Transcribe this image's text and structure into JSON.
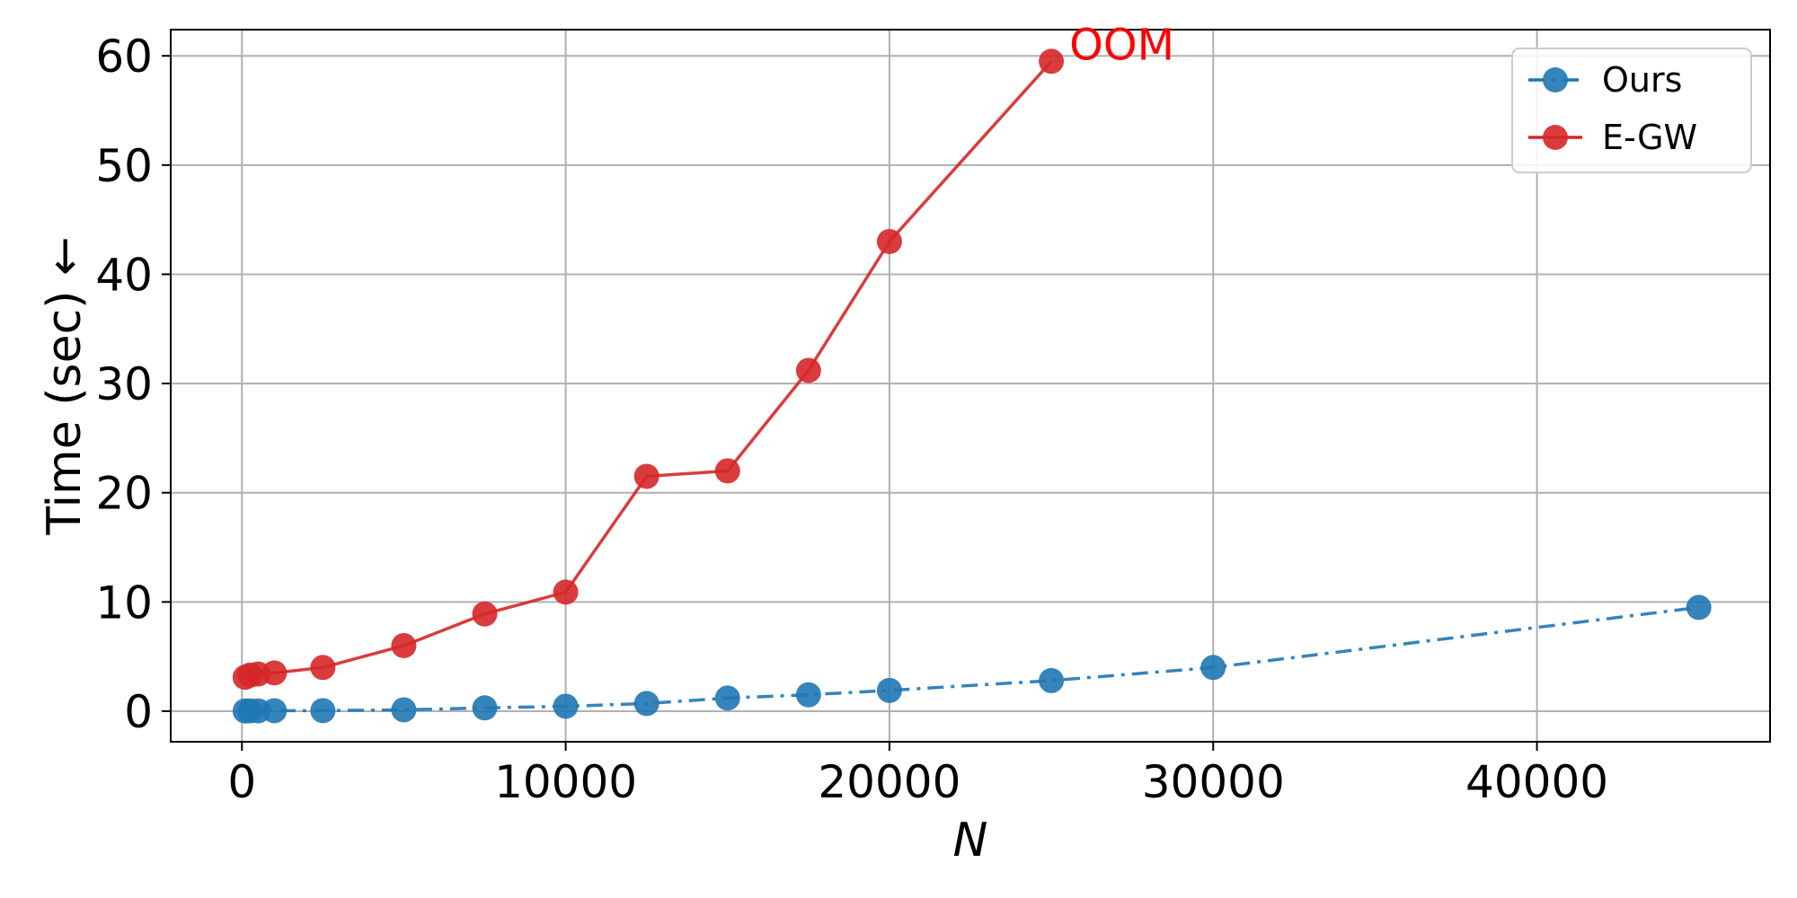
{
  "chart_data": {
    "type": "line",
    "xlabel": "N",
    "ylabel": "Time (sec) ←",
    "xlim": [
      -2200,
      47200
    ],
    "ylim": [
      -2.8,
      62.4
    ],
    "xticks": [
      0,
      10000,
      20000,
      30000,
      40000
    ],
    "xtick_labels": [
      "0",
      "10000",
      "20000",
      "30000",
      "40000"
    ],
    "yticks": [
      0,
      10,
      20,
      30,
      40,
      50,
      60
    ],
    "ytick_labels": [
      "0",
      "10",
      "20",
      "30",
      "40",
      "50",
      "60"
    ],
    "grid": true,
    "legend_position": "top-right",
    "series": [
      {
        "name": "Ours",
        "color": "#1f77b4",
        "linestyle": "dash-dot",
        "marker": "circle",
        "x": [
          100,
          250,
          500,
          1000,
          2500,
          5000,
          7500,
          10000,
          12500,
          15000,
          17500,
          20000,
          25000,
          30000,
          45000
        ],
        "y": [
          0.02,
          0.03,
          0.03,
          0.04,
          0.05,
          0.12,
          0.3,
          0.45,
          0.7,
          1.2,
          1.5,
          1.9,
          2.8,
          4.0,
          9.5
        ]
      },
      {
        "name": "E-GW",
        "color": "#d62728",
        "linestyle": "solid",
        "marker": "circle",
        "x": [
          100,
          250,
          500,
          1000,
          2500,
          5000,
          7500,
          10000,
          12500,
          15000,
          17500,
          20000,
          25000
        ],
        "y": [
          3.1,
          3.3,
          3.4,
          3.5,
          4.0,
          6.0,
          8.9,
          10.9,
          21.5,
          22.0,
          31.2,
          43.0,
          59.5
        ]
      }
    ],
    "annotations": [
      {
        "text": "OOM",
        "x": 25000,
        "y": 59.5,
        "color": "#ff0000"
      }
    ]
  }
}
